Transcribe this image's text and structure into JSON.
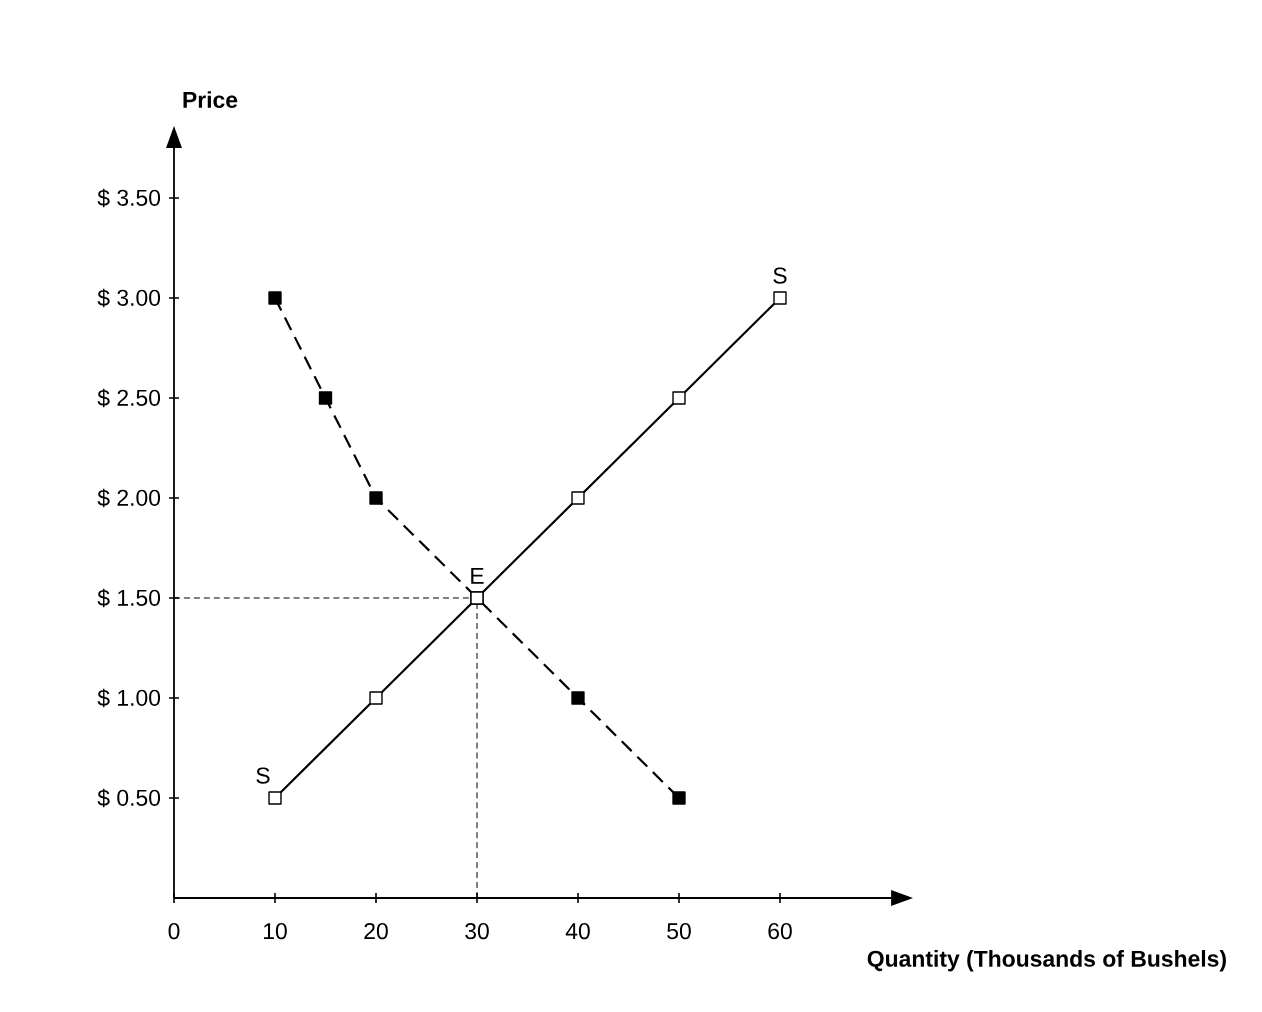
{
  "chart_data": {
    "type": "line",
    "xlabel": "Quantity (Thousands of Bushels)",
    "ylabel": "Price",
    "series": [
      {
        "color": "#000000",
        "x": [
          10,
          20,
          30,
          40,
          50,
          60
        ],
        "values": [
          0.5,
          1.0,
          1.5,
          2.0,
          2.5,
          3.0
        ],
        "line_style": "solid"
      },
      {
        "color": "#000000",
        "x": [
          10,
          15,
          20,
          30,
          40,
          50
        ],
        "values": [
          3.0,
          2.5,
          2.0,
          1.5,
          1.0,
          0.5
        ],
        "line_style": "dashed"
      }
    ],
    "marker": "square",
    "xlim": [
      0,
      71
    ],
    "ylim": [
      0,
      3.75
    ],
    "xticks": [
      0,
      10,
      20,
      30,
      40,
      50,
      60
    ],
    "yticks": [
      {
        "value": 0.5,
        "label": "$ 0.50"
      },
      {
        "value": 1.0,
        "label": "$ 1.00"
      },
      {
        "value": 1.5,
        "label": "$ 1.50"
      },
      {
        "value": 2.0,
        "label": "$ 2.00"
      },
      {
        "value": 2.5,
        "label": "$ 2.50"
      },
      {
        "value": 3.0,
        "label": "$ 3.00"
      },
      {
        "value": 3.5,
        "label": "$ 3.50"
      }
    ],
    "ref_lines": [
      {
        "axis": "y",
        "value": 1.5,
        "line_style": "dashed"
      },
      {
        "axis": "x",
        "value": 30,
        "line_style": "dashed"
      }
    ],
    "annotations": [
      {
        "text": "S",
        "x": 10,
        "y": 0.5
      },
      {
        "text": "S",
        "x": 60,
        "y": 3.0
      },
      {
        "text": "E",
        "x": 30,
        "y": 1.5
      }
    ],
    "grid": false
  }
}
